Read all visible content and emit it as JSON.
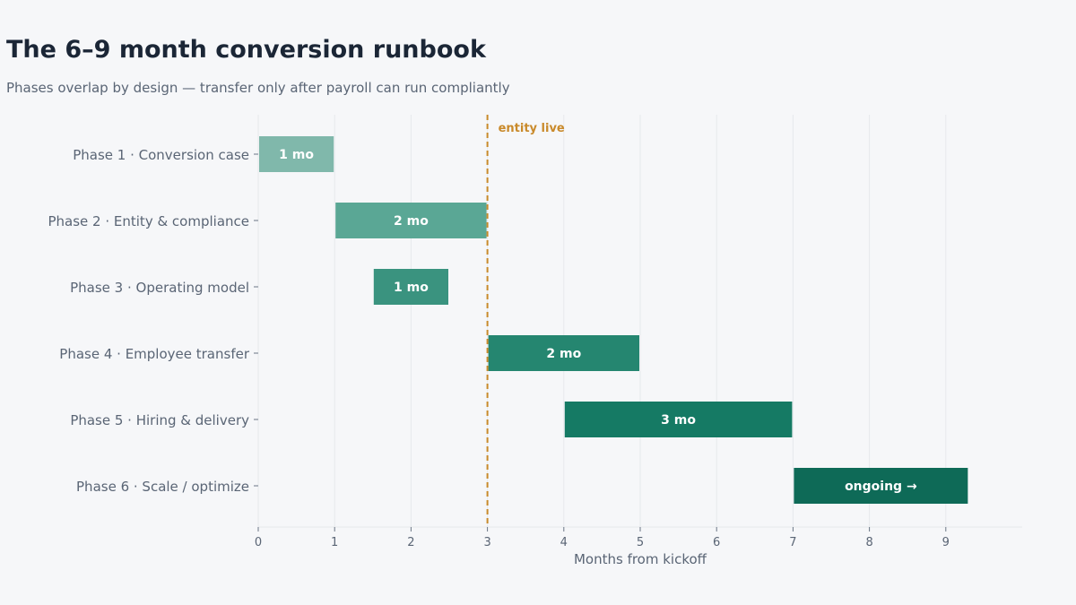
{
  "chart_data": {
    "type": "bar",
    "orientation": "horizontal-gantt",
    "title": "The 6–9 month conversion runbook",
    "subtitle": "Phases overlap by design — transfer only after payroll can run compliantly",
    "xlabel": "Months from kickoff",
    "xlim": [
      0,
      10
    ],
    "xticks": [
      0,
      1,
      2,
      3,
      4,
      5,
      6,
      7,
      8,
      9
    ],
    "grid": true,
    "phases": [
      {
        "name": "Phase 1 · Conversion case",
        "start": 0,
        "end": 1,
        "label": "1 mo",
        "color": "#80b8ab"
      },
      {
        "name": "Phase 2 · Entity & compliance",
        "start": 1,
        "end": 3,
        "label": "2 mo",
        "color": "#5aa795"
      },
      {
        "name": "Phase 3 · Operating model",
        "start": 1.5,
        "end": 2.5,
        "label": "1 mo",
        "color": "#3a937f"
      },
      {
        "name": "Phase 4 · Employee transfer",
        "start": 3,
        "end": 5,
        "label": "2 mo",
        "color": "#258670"
      },
      {
        "name": "Phase 5 · Hiring & delivery",
        "start": 4,
        "end": 7,
        "label": "3 mo",
        "color": "#157a64"
      },
      {
        "name": "Phase 6 · Scale / optimize",
        "start": 7,
        "end": 9.3,
        "label": "ongoing →",
        "color": "#0e6a57"
      }
    ],
    "marker": {
      "x": 3,
      "label": "entity live",
      "color": "#c98a2b"
    }
  }
}
